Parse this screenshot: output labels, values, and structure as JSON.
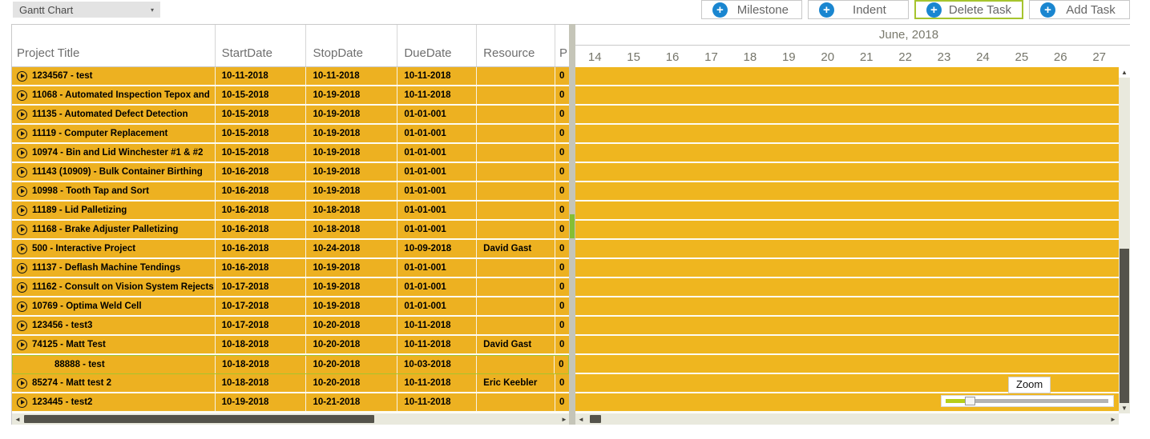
{
  "toolbar": {
    "view_selector": {
      "value": "Gantt Chart"
    },
    "buttons": [
      {
        "label": "Milestone",
        "selected": false
      },
      {
        "label": "Indent",
        "selected": false
      },
      {
        "label": "Delete Task",
        "selected": true
      },
      {
        "label": "Add Task",
        "selected": false
      }
    ]
  },
  "grid": {
    "columns": [
      "Project Title",
      "StartDate",
      "StopDate",
      "DueDate",
      "Resource",
      "P"
    ],
    "rows": [
      {
        "title": "1234567 - test",
        "start": "10-11-2018",
        "stop": "10-11-2018",
        "due": "10-11-2018",
        "resource": "",
        "progress": "0",
        "expandable": true,
        "selected": false,
        "indented": false
      },
      {
        "title": "11068 - Automated Inspection Tepox and",
        "start": "10-15-2018",
        "stop": "10-19-2018",
        "due": "10-11-2018",
        "resource": "",
        "progress": "0",
        "expandable": true,
        "selected": false,
        "indented": false
      },
      {
        "title": "11135 - Automated Defect Detection",
        "start": "10-15-2018",
        "stop": "10-19-2018",
        "due": "01-01-001",
        "resource": "",
        "progress": "0",
        "expandable": true,
        "selected": false,
        "indented": false
      },
      {
        "title": "11119 - Computer Replacement",
        "start": "10-15-2018",
        "stop": "10-19-2018",
        "due": "01-01-001",
        "resource": "",
        "progress": "0",
        "expandable": true,
        "selected": false,
        "indented": false
      },
      {
        "title": "10974 - Bin and Lid Winchester #1 & #2",
        "start": "10-15-2018",
        "stop": "10-19-2018",
        "due": "01-01-001",
        "resource": "",
        "progress": "0",
        "expandable": true,
        "selected": false,
        "indented": false
      },
      {
        "title": "11143 (10909) - Bulk Container Birthing",
        "start": "10-16-2018",
        "stop": "10-19-2018",
        "due": "01-01-001",
        "resource": "",
        "progress": "0",
        "expandable": true,
        "selected": false,
        "indented": false
      },
      {
        "title": "10998 - Tooth Tap and Sort",
        "start": "10-16-2018",
        "stop": "10-19-2018",
        "due": "01-01-001",
        "resource": "",
        "progress": "0",
        "expandable": true,
        "selected": false,
        "indented": false
      },
      {
        "title": "11189 - Lid Palletizing",
        "start": "10-16-2018",
        "stop": "10-18-2018",
        "due": "01-01-001",
        "resource": "",
        "progress": "0",
        "expandable": true,
        "selected": false,
        "indented": false
      },
      {
        "title": "11168 - Brake Adjuster Palletizing",
        "start": "10-16-2018",
        "stop": "10-18-2018",
        "due": "01-01-001",
        "resource": "",
        "progress": "0",
        "expandable": true,
        "selected": false,
        "indented": false
      },
      {
        "title": "500 - Interactive Project",
        "start": "10-16-2018",
        "stop": "10-24-2018",
        "due": "10-09-2018",
        "resource": "David Gast",
        "progress": "0",
        "expandable": true,
        "selected": false,
        "indented": false
      },
      {
        "title": "11137 - Deflash Machine Tendings",
        "start": "10-16-2018",
        "stop": "10-19-2018",
        "due": "01-01-001",
        "resource": "",
        "progress": "0",
        "expandable": true,
        "selected": false,
        "indented": false
      },
      {
        "title": "11162 - Consult on Vision System Rejects",
        "start": "10-17-2018",
        "stop": "10-19-2018",
        "due": "01-01-001",
        "resource": "",
        "progress": "0",
        "expandable": true,
        "selected": false,
        "indented": false
      },
      {
        "title": "10769 - Optima Weld Cell",
        "start": "10-17-2018",
        "stop": "10-19-2018",
        "due": "01-01-001",
        "resource": "",
        "progress": "0",
        "expandable": true,
        "selected": false,
        "indented": false
      },
      {
        "title": "123456 - test3",
        "start": "10-17-2018",
        "stop": "10-20-2018",
        "due": "10-11-2018",
        "resource": "",
        "progress": "0",
        "expandable": true,
        "selected": false,
        "indented": false
      },
      {
        "title": "74125 - Matt Test",
        "start": "10-18-2018",
        "stop": "10-20-2018",
        "due": "10-11-2018",
        "resource": "David Gast",
        "progress": "0",
        "expandable": true,
        "selected": false,
        "indented": false
      },
      {
        "title": "88888 - test",
        "start": "10-18-2018",
        "stop": "10-20-2018",
        "due": "10-03-2018",
        "resource": "",
        "progress": "0",
        "expandable": false,
        "selected": true,
        "indented": true
      },
      {
        "title": "85274 - Matt test 2",
        "start": "10-18-2018",
        "stop": "10-20-2018",
        "due": "10-11-2018",
        "resource": "Eric Keebler",
        "progress": "0",
        "expandable": true,
        "selected": false,
        "indented": false
      },
      {
        "title": "123445 - test2",
        "start": "10-19-2018",
        "stop": "10-21-2018",
        "due": "10-11-2018",
        "resource": "",
        "progress": "0",
        "expandable": true,
        "selected": false,
        "indented": false
      }
    ]
  },
  "timeline": {
    "month_label": "June, 2018",
    "days": [
      "14",
      "15",
      "16",
      "17",
      "18",
      "19",
      "20",
      "21",
      "22",
      "23",
      "24",
      "25",
      "26",
      "27"
    ]
  },
  "zoom_control": {
    "tooltip": "Zoom"
  },
  "icons": {
    "dropdown_caret": "▾",
    "plus": "+",
    "arrow_left": "◄",
    "arrow_right": "►",
    "arrow_up": "▲",
    "arrow_down": "▼"
  },
  "colors": {
    "row_yellow": "#EDB121",
    "timeline_yellow": "#EFB61F",
    "selection_green": "#A6C42E",
    "button_blue": "#1A86D0",
    "splitter_handle_green": "#85BE34",
    "scrollbar_thumb": "#54534B",
    "scrollbar_track": "#E9E9DD"
  }
}
